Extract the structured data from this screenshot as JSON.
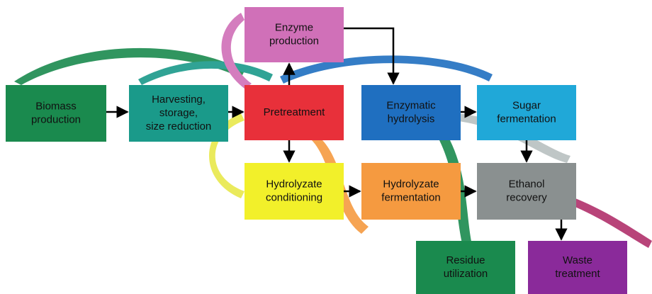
{
  "nodes": [
    {
      "lines": [
        "Biomass",
        "production"
      ]
    },
    {
      "lines": [
        "Harvesting,",
        "storage,",
        "size reduction"
      ]
    },
    {
      "lines": [
        "Pretreatment"
      ]
    },
    {
      "lines": [
        "Enzyme",
        "production"
      ]
    },
    {
      "lines": [
        "Enzymatic",
        "hydrolysis"
      ]
    },
    {
      "lines": [
        "Sugar",
        "fermentation"
      ]
    },
    {
      "lines": [
        "Hydrolyzate",
        "conditioning"
      ]
    },
    {
      "lines": [
        "Hydrolyzate",
        "fermentation"
      ]
    },
    {
      "lines": [
        "Ethanol",
        "recovery"
      ]
    },
    {
      "lines": [
        "Residue",
        "utilization"
      ]
    },
    {
      "lines": [
        "Waste",
        "treatment"
      ]
    }
  ]
}
